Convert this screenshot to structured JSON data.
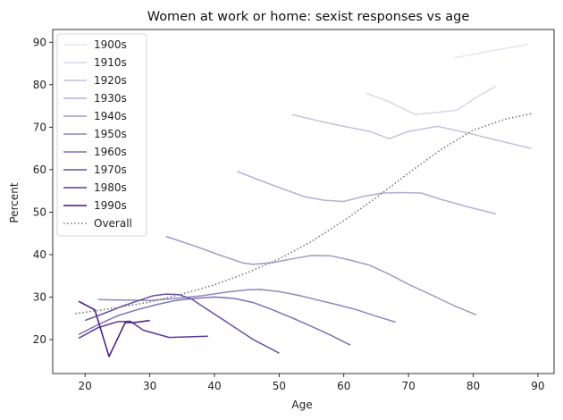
{
  "chart_data": {
    "type": "line",
    "title": "Women at work or home: sexist responses vs age",
    "xlabel": "Age",
    "ylabel": "Percent",
    "xlim": [
      15,
      92.5
    ],
    "ylim": [
      12,
      93
    ],
    "xticks": [
      20,
      30,
      40,
      50,
      60,
      70,
      80,
      90
    ],
    "yticks": [
      20,
      30,
      40,
      50,
      60,
      70,
      80,
      90
    ],
    "grid": false,
    "legend_position": "top-left",
    "series": [
      {
        "name": "1900s",
        "color": "#e7e3f0",
        "style": "solid",
        "x": [
          77,
          83,
          88.5
        ],
        "y": [
          86.3,
          88,
          89.5
        ]
      },
      {
        "name": "1910s",
        "color": "#d9d6ea",
        "style": "solid",
        "x": [
          63.5,
          67,
          71,
          74.5,
          77.5,
          80.5,
          83.5
        ],
        "y": [
          78,
          76,
          73,
          73.5,
          74,
          77,
          79.7
        ]
      },
      {
        "name": "1920s",
        "color": "#c5c1de",
        "style": "solid",
        "x": [
          52,
          56,
          60,
          64,
          67,
          70,
          74.5,
          79,
          84,
          89
        ],
        "y": [
          73,
          71.5,
          70.2,
          69,
          67.3,
          69,
          70.2,
          68.7,
          66.8,
          65
        ]
      },
      {
        "name": "1930s",
        "color": "#b2aed3",
        "style": "solid",
        "x": [
          43.5,
          47,
          50.5,
          54,
          57,
          60,
          63,
          66,
          69,
          72,
          75,
          79,
          83.5
        ],
        "y": [
          59.6,
          57.5,
          55.5,
          53.6,
          52.8,
          52.5,
          53.7,
          54.5,
          54.6,
          54.5,
          53,
          51.3,
          49.6
        ]
      },
      {
        "name": "1940s",
        "color": "#9e9ac8",
        "style": "solid",
        "x": [
          32.5,
          37,
          41,
          44.5,
          46,
          49,
          52,
          55,
          58,
          61,
          64,
          67,
          70,
          74,
          77,
          80.5
        ],
        "y": [
          44.3,
          42,
          39.8,
          38,
          37.7,
          38.1,
          39,
          39.8,
          39.7,
          38.7,
          37.5,
          35.4,
          33,
          30.2,
          28,
          25.8
        ]
      },
      {
        "name": "1950s",
        "color": "#8b88bf",
        "style": "solid",
        "x": [
          22,
          26,
          30,
          34,
          38,
          42,
          45,
          47,
          50,
          53,
          56,
          59,
          62,
          65,
          68
        ],
        "y": [
          29.4,
          29.3,
          29.2,
          29.7,
          30.3,
          31.2,
          31.7,
          31.8,
          31.3,
          30.4,
          29.3,
          28.2,
          27,
          25.5,
          24.1
        ]
      },
      {
        "name": "1960s",
        "color": "#7a74b6",
        "style": "solid",
        "x": [
          19,
          22,
          25,
          28,
          31,
          34,
          37,
          40,
          43,
          46,
          49,
          52,
          55,
          58,
          61
        ],
        "y": [
          21.2,
          23.5,
          25.6,
          27,
          28.2,
          29.2,
          29.7,
          30,
          29.7,
          28.7,
          27,
          25.1,
          23.1,
          21,
          18.7
        ]
      },
      {
        "name": "1970s",
        "color": "#6a51a3",
        "style": "solid",
        "x": [
          20,
          23,
          26,
          28.5,
          30.5,
          32.5,
          34.5,
          36.5,
          38,
          40,
          43,
          46,
          50
        ],
        "y": [
          24.5,
          26.2,
          28,
          29.3,
          30.3,
          30.7,
          30.6,
          29.5,
          28,
          26,
          23,
          20,
          16.8
        ]
      },
      {
        "name": "1980s",
        "color": "#5a3897",
        "style": "solid",
        "x": [
          19,
          22,
          25,
          27,
          29,
          33,
          39
        ],
        "y": [
          20.3,
          22.8,
          24.2,
          24.3,
          22.2,
          20.5,
          20.8
        ]
      },
      {
        "name": "1990s",
        "color": "#4a1486",
        "style": "solid",
        "x": [
          19,
          21.5,
          23.7,
          26.2,
          27.5,
          30
        ],
        "y": [
          29,
          27,
          16,
          24,
          24,
          24.5
        ]
      },
      {
        "name": "Overall",
        "color": "#777777",
        "style": "dotted",
        "x": [
          18.5,
          24,
          30,
          35,
          40,
          45,
          50,
          55,
          60,
          65,
          70,
          75,
          80,
          85,
          89
        ],
        "y": [
          26.1,
          27.3,
          28.8,
          30.7,
          32.9,
          35.7,
          39,
          43.1,
          48,
          53.4,
          59.2,
          64.7,
          69.3,
          71.9,
          73.2
        ]
      }
    ]
  }
}
